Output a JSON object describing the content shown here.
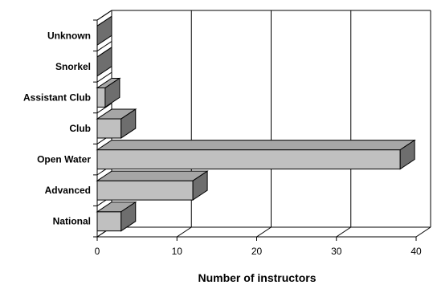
{
  "chart_data": {
    "type": "bar",
    "orientation": "horizontal",
    "style": "3d",
    "categories": [
      "National",
      "Advanced",
      "Open Water",
      "Club",
      "Assistant Club",
      "Snorkel",
      "Unknown"
    ],
    "values": [
      3,
      12,
      38,
      3,
      1,
      0,
      0
    ],
    "xlabel": "Number of instructors",
    "ylabel": "",
    "xlim": [
      0,
      40
    ],
    "xticks": [
      0,
      10,
      20,
      30,
      40
    ],
    "xtick_labels": [
      "0",
      "10",
      "20",
      "30",
      "40"
    ],
    "grid": true,
    "legend": "none",
    "colors": {
      "bar_front": "#c0c0c0",
      "bar_top": "#a6a6a6",
      "bar_side": "#6e6e6e",
      "outline": "#000000",
      "grid": "#000000"
    }
  }
}
